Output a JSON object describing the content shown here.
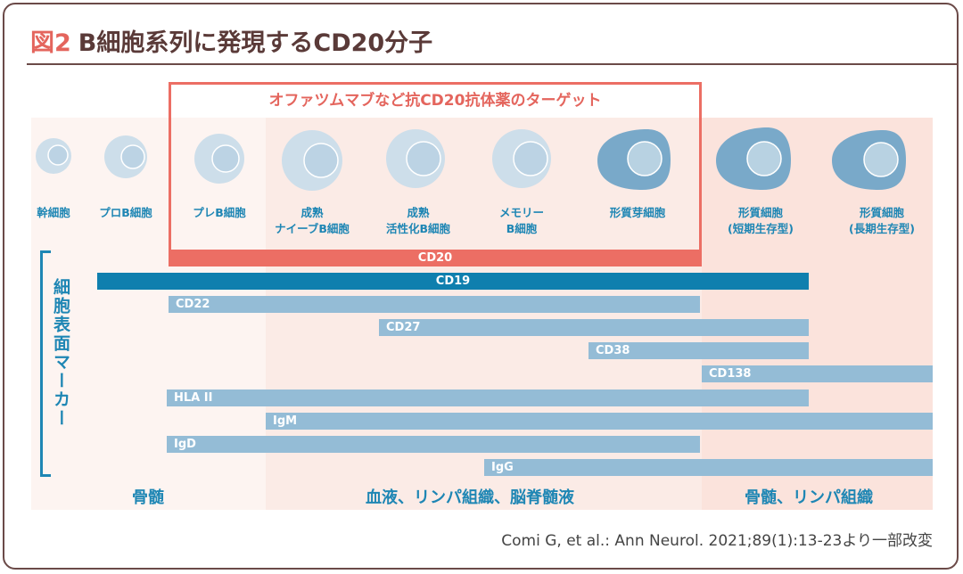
{
  "title": {
    "figure": "図2",
    "text": "B細胞系列に発現するCD20分子"
  },
  "box_title": "オファツムマブなど抗CD20抗体薬のターゲット",
  "cells": [
    {
      "label1": "幹細胞",
      "label2": ""
    },
    {
      "label1": "プロB細胞",
      "label2": ""
    },
    {
      "label1": "プレB細胞",
      "label2": ""
    },
    {
      "label1": "成熟",
      "label2": "ナイーブB細胞"
    },
    {
      "label1": "成熟",
      "label2": "活性化B細胞"
    },
    {
      "label1": "メモリー",
      "label2": "B細胞"
    },
    {
      "label1": "形質芽細胞",
      "label2": ""
    },
    {
      "label1": "形質細胞",
      "label2": "(短期生存型)"
    },
    {
      "label1": "形質細胞",
      "label2": "(長期生存型)"
    }
  ],
  "axis_label": "細胞表面マーカー",
  "markers": [
    "CD20",
    "CD19",
    "CD22",
    "CD27",
    "CD38",
    "CD138",
    "HLA II",
    "IgM",
    "IgD",
    "IgG"
  ],
  "locations": [
    "骨髄",
    "血液、リンパ組織、脳脊髄液",
    "骨髄、リンパ組織"
  ],
  "citation": "Comi G, et al.: Ann Neurol. 2021;89(1):13-23より一部改変",
  "colors": {
    "accent_red": "#ec6e64",
    "cd19": "#0f7fae",
    "marker": "#94bcd6",
    "label_blue": "#1e86b4"
  }
}
